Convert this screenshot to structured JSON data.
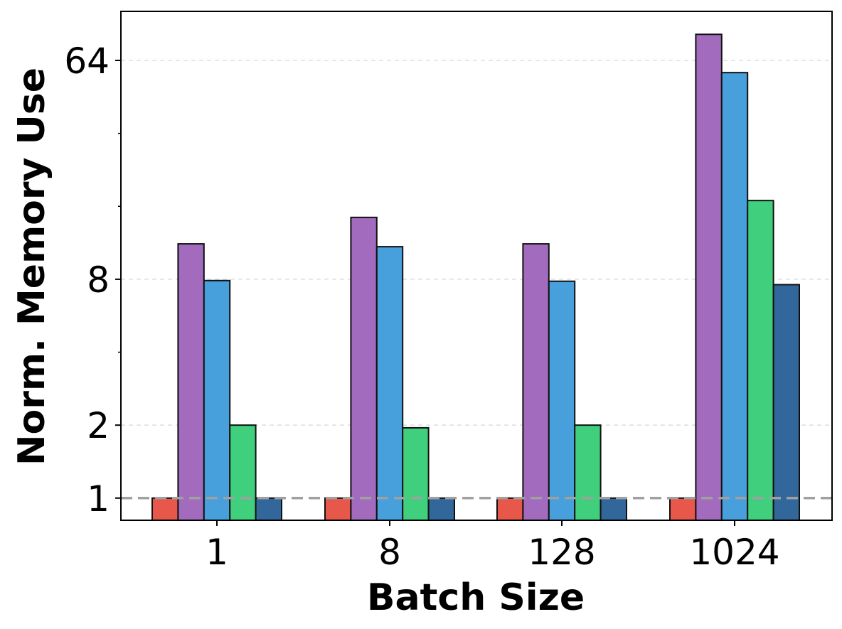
{
  "chart_data": {
    "type": "bar",
    "xlabel": "Batch Size",
    "ylabel": "Norm. Memory Use",
    "yscale": "log2",
    "ylim": [
      0.81,
      102
    ],
    "yticks": [
      1,
      2,
      8,
      64
    ],
    "ytick_labels": [
      "1",
      "2",
      "8",
      "64"
    ],
    "grid": "horizontal dashed at major ticks",
    "reference_line": {
      "y": 1,
      "style": "dashed",
      "color": "#a0a0a0"
    },
    "categories": [
      "1",
      "8",
      "128",
      "1024"
    ],
    "series": [
      {
        "color": "#e8584a",
        "values": [
          1.0,
          1.0,
          1.0,
          1.0
        ]
      },
      {
        "color": "#a26bbd",
        "values": [
          11.2,
          14.4,
          11.2,
          82.0
        ]
      },
      {
        "color": "#479fdc",
        "values": [
          7.9,
          10.9,
          7.85,
          57.0
        ]
      },
      {
        "color": "#40cf7c",
        "values": [
          2.0,
          1.95,
          2.0,
          16.9
        ]
      },
      {
        "color": "#32679c",
        "values": [
          1.0,
          1.0,
          1.0,
          7.6
        ]
      }
    ]
  }
}
